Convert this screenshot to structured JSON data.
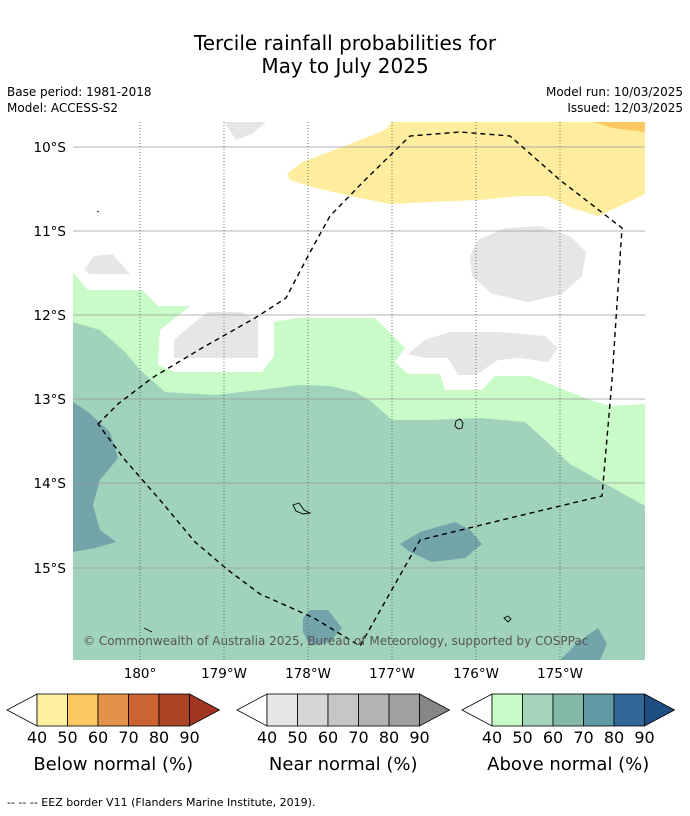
{
  "header": {
    "title_line1": "Tercile rainfall probabilities for",
    "title_line2": "May to July 2025",
    "base_period": "Base period: 1981-2018",
    "model": "Model: ACCESS-S2",
    "model_run": "Model run: 10/03/2025",
    "issued": "Issued: 12/03/2025"
  },
  "map": {
    "lat_labels": [
      "10°S",
      "11°S",
      "12°S",
      "13°S",
      "14°S",
      "15°S"
    ],
    "lon_labels": [
      "180°",
      "179°W",
      "178°W",
      "177°W",
      "176°W",
      "175°W"
    ],
    "copyright": "© Commonwealth of Australia 2025, Bureau of Meteorology, supported by COSPPac"
  },
  "colorbars": [
    {
      "title": "Below normal (%)",
      "ticks": [
        "40",
        "50",
        "60",
        "70",
        "80",
        "90"
      ],
      "colors": [
        "#ffffff",
        "#fff0a0",
        "#fec860",
        "#e2924a",
        "#cc6333",
        "#ab4424",
        "#a03420"
      ]
    },
    {
      "title": "Near normal (%)",
      "ticks": [
        "40",
        "50",
        "60",
        "70",
        "80",
        "90"
      ],
      "colors": [
        "#ffffff",
        "#e6e6e6",
        "#d6d6d6",
        "#c6c6c6",
        "#b3b3b3",
        "#a0a0a0",
        "#868686"
      ]
    },
    {
      "title": "Above normal (%)",
      "ticks": [
        "40",
        "50",
        "60",
        "70",
        "80",
        "90"
      ],
      "colors": [
        "#ffffff",
        "#c8fbc8",
        "#a4d5bc",
        "#82b9a8",
        "#5e99a4",
        "#316898",
        "#1e4d82"
      ]
    }
  ],
  "footer": {
    "eez_note": "-- -- -- EEZ border V11 (Flanders Marine Institute, 2019)."
  }
}
